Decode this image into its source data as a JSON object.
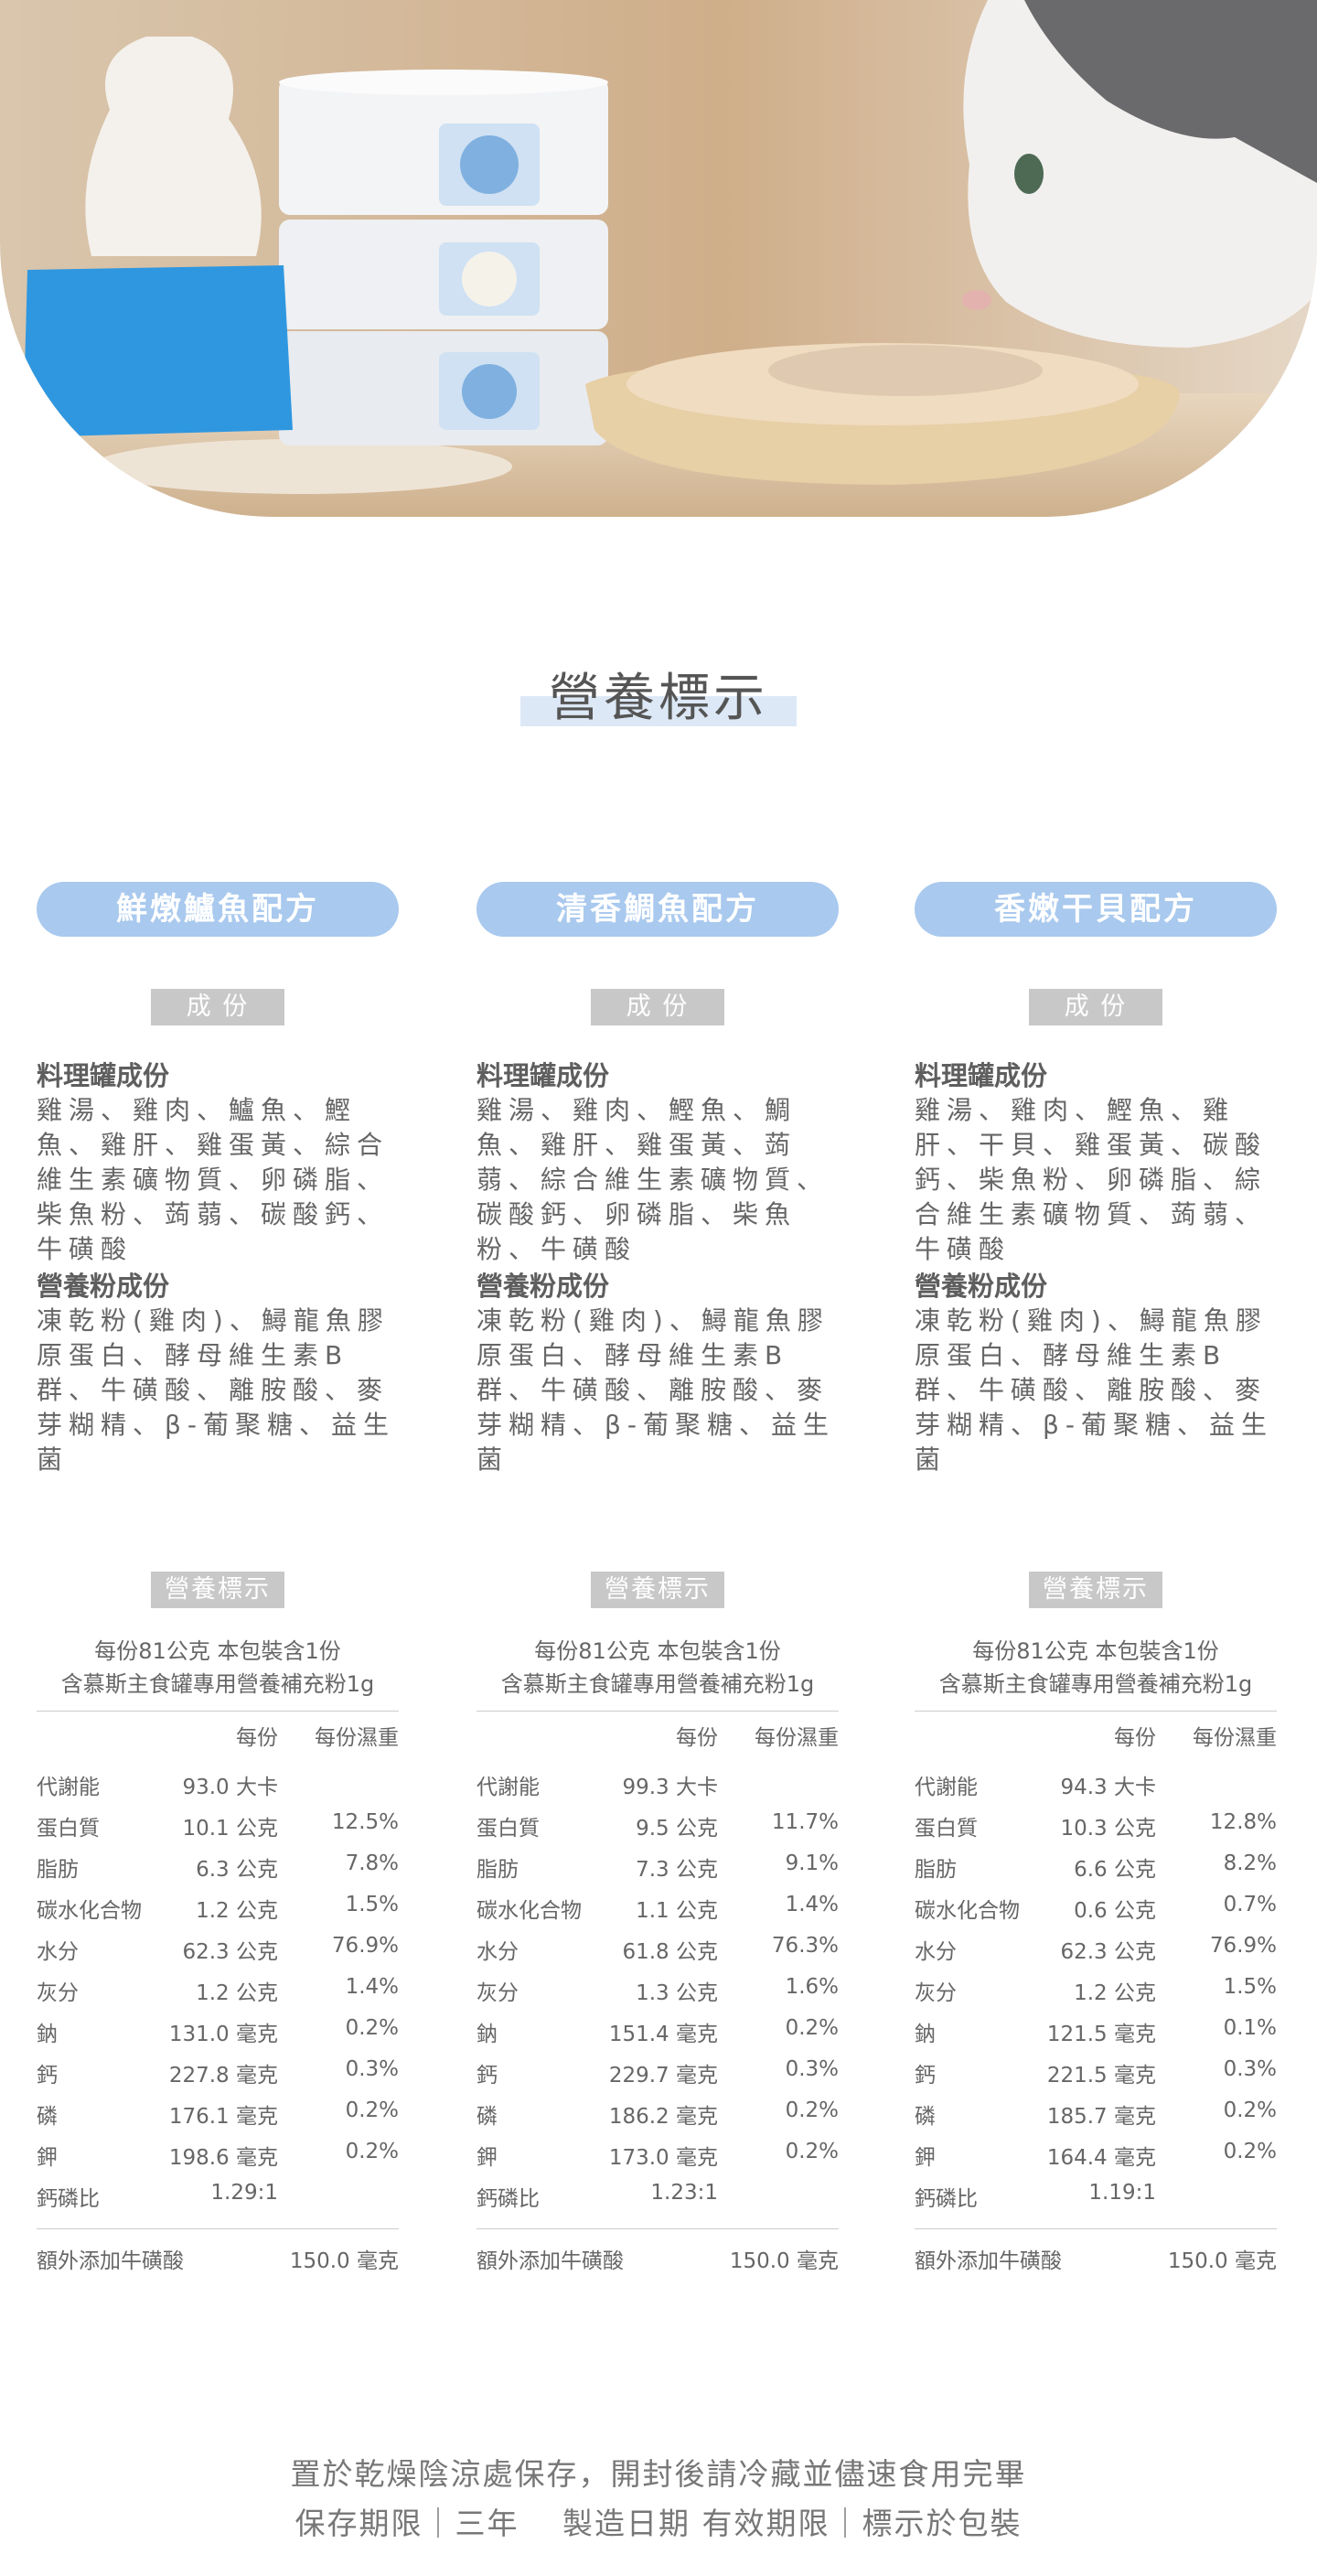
{
  "header": {
    "title": "營養標示"
  },
  "products": [
    {
      "name": "鮮燉鱸魚配方",
      "ingredients_badge": "成 份",
      "sections": [
        {
          "heading": "料理罐成份",
          "text": "雞湯、雞肉、鱸魚、鰹魚、雞肝、雞蛋黃、綜合維生素礦物質、卵磷脂、柴魚粉、蒟蒻、碳酸鈣、牛磺酸"
        },
        {
          "heading": "營養粉成份",
          "text": "凍乾粉(雞肉)、鱘龍魚膠原蛋白、酵母維生素B群、牛磺酸、離胺酸、麥芽糊精、β-葡聚糖、益生菌"
        }
      ],
      "nutrition_badge": "營養標示",
      "serving": [
        "每份81公克  本包裝含1份",
        "含慕斯主食罐專用營養補充粉1g"
      ],
      "table_header": [
        "每份",
        "每份濕重"
      ],
      "rows": [
        [
          "代謝能",
          "93.0 大卡"
        ],
        [
          "蛋白質",
          "10.1 公克",
          "12.5%"
        ],
        [
          "脂肪",
          "6.3 公克",
          "7.8%"
        ],
        [
          "碳水化合物",
          "1.2 公克",
          "1.5%"
        ],
        [
          "水分",
          "62.3 公克",
          "76.9%"
        ],
        [
          "灰分",
          "1.2 公克",
          "1.4%"
        ],
        [
          "鈉",
          "131.0 毫克",
          "0.2%"
        ],
        [
          "鈣",
          "227.8 毫克",
          "0.3%"
        ],
        [
          "磷",
          "176.1 毫克",
          "0.2%"
        ],
        [
          "鉀",
          "198.6 毫克",
          "0.2%"
        ],
        [
          "鈣磷比",
          "1.29:1"
        ]
      ],
      "extra": [
        "額外添加牛磺酸",
        "150.0 毫克"
      ]
    },
    {
      "name": "清香鯛魚配方",
      "ingredients_badge": "成 份",
      "sections": [
        {
          "heading": "料理罐成份",
          "text": "雞湯、雞肉、鰹魚、鯛魚、雞肝、雞蛋黃、蒟蒻、綜合維生素礦物質、碳酸鈣、卵磷脂、柴魚粉、牛磺酸"
        },
        {
          "heading": "營養粉成份",
          "text": "凍乾粉(雞肉)、鱘龍魚膠原蛋白、酵母維生素B群、牛磺酸、離胺酸、麥芽糊精、β-葡聚糖、益生菌"
        }
      ],
      "nutrition_badge": "營養標示",
      "serving": [
        "每份81公克  本包裝含1份",
        "含慕斯主食罐專用營養補充粉1g"
      ],
      "table_header": [
        "每份",
        "每份濕重"
      ],
      "rows": [
        [
          "代謝能",
          "99.3 大卡"
        ],
        [
          "蛋白質",
          "9.5 公克",
          "11.7%"
        ],
        [
          "脂肪",
          "7.3 公克",
          "9.1%"
        ],
        [
          "碳水化合物",
          "1.1 公克",
          "1.4%"
        ],
        [
          "水分",
          "61.8 公克",
          "76.3%"
        ],
        [
          "灰分",
          "1.3 公克",
          "1.6%"
        ],
        [
          "鈉",
          "151.4 毫克",
          "0.2%"
        ],
        [
          "鈣",
          "229.7 毫克",
          "0.3%"
        ],
        [
          "磷",
          "186.2 毫克",
          "0.2%"
        ],
        [
          "鉀",
          "173.0 毫克",
          "0.2%"
        ],
        [
          "鈣磷比",
          "1.23:1"
        ]
      ],
      "extra": [
        "額外添加牛磺酸",
        "150.0 毫克"
      ]
    },
    {
      "name": "香嫩干貝配方",
      "ingredients_badge": "成 份",
      "sections": [
        {
          "heading": "料理罐成份",
          "text": "雞湯、雞肉、鰹魚、雞肝、干貝、雞蛋黃、碳酸鈣、柴魚粉、卵磷脂、綜合維生素礦物質、蒟蒻、牛磺酸"
        },
        {
          "heading": "營養粉成份",
          "text": "凍乾粉(雞肉)、鱘龍魚膠原蛋白、酵母維生素B群、牛磺酸、離胺酸、麥芽糊精、β-葡聚糖、益生菌"
        }
      ],
      "nutrition_badge": "營養標示",
      "serving": [
        "每份81公克  本包裝含1份",
        "含慕斯主食罐專用營養補充粉1g"
      ],
      "table_header": [
        "每份",
        "每份濕重"
      ],
      "rows": [
        [
          "代謝能",
          "94.3 大卡"
        ],
        [
          "蛋白質",
          "10.3 公克",
          "12.8%"
        ],
        [
          "脂肪",
          "6.6 公克",
          "8.2%"
        ],
        [
          "碳水化合物",
          "0.6 公克",
          "0.7%"
        ],
        [
          "水分",
          "62.3 公克",
          "76.9%"
        ],
        [
          "灰分",
          "1.2 公克",
          "1.5%"
        ],
        [
          "鈉",
          "121.5 毫克",
          "0.1%"
        ],
        [
          "鈣",
          "221.5 毫克",
          "0.3%"
        ],
        [
          "磷",
          "185.7 毫克",
          "0.2%"
        ],
        [
          "鉀",
          "164.4 毫克",
          "0.2%"
        ],
        [
          "鈣磷比",
          "1.19:1"
        ]
      ],
      "extra": [
        "額外添加牛磺酸",
        "150.0 毫克"
      ]
    }
  ],
  "footer": {
    "lines": [
      "置於乾燥陰涼處保存，開封後請冷藏並儘速食用完畢",
      "保存期限｜三年　 製造日期 有效期限｜標示於包裝"
    ]
  }
}
